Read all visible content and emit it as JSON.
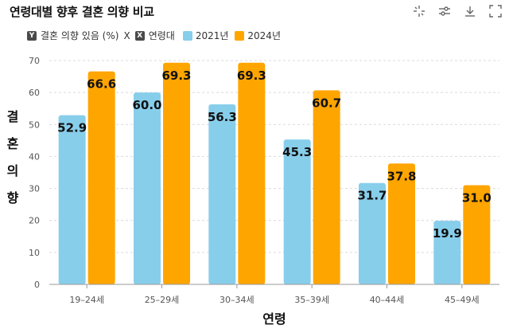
{
  "chart_data": {
    "type": "bar",
    "title": "연령대별 향후 결혼 의향 비교",
    "axis_label_title": "결혼 의향 있음 (%) X 연령대",
    "categories": [
      "19–24세",
      "25–29세",
      "30–34세",
      "35–39세",
      "40–44세",
      "45–49세"
    ],
    "series": [
      {
        "name": "2021년",
        "color": "#87CEEB",
        "values": [
          52.9,
          60.0,
          56.3,
          45.3,
          31.7,
          19.9
        ]
      },
      {
        "name": "2024년",
        "color": "#FFA500",
        "values": [
          66.6,
          69.3,
          69.3,
          60.7,
          37.8,
          31.0
        ]
      }
    ],
    "xlabel": "연령",
    "ylabel": "결혼 의향",
    "ylim": [
      0,
      70
    ],
    "yticks": [
      0,
      10,
      20,
      30,
      40,
      50,
      60,
      70
    ],
    "grid": true
  },
  "legend": {
    "y_badge": "Y",
    "y_text": "결혼 의향 있음 (%)",
    "x_badge": "X",
    "x_text": "연령대",
    "joiner": "X"
  },
  "toolbar": {
    "icons": [
      "crosshair-icon",
      "settings-icon",
      "download-icon",
      "expand-icon"
    ]
  }
}
